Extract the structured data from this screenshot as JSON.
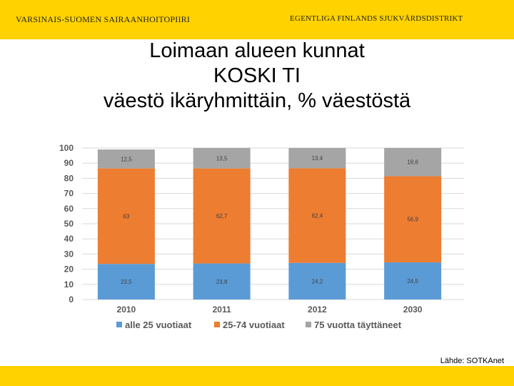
{
  "header": {
    "org_fi": "VARSINAIS-SUOMEN SAIRAANHOITOPIIRI",
    "org_sv": "EGENTLIGA FINLANDS SJUKVÅRDSDISTRIKT",
    "bar_color": "#ffd200"
  },
  "slide": {
    "title_line1": "Loimaan alueen kunnat",
    "title_line2": "KOSKI TI",
    "title_line3": "väestö ikäryhmittäin, % väestöstä"
  },
  "footer": {
    "source": "Lähde: SOTKAnet"
  },
  "chart_data": {
    "type": "bar",
    "stacked": true,
    "categories": [
      "2010",
      "2011",
      "2012",
      "2030"
    ],
    "series": [
      {
        "name": "alle 25 vuotiaat",
        "values": [
          23.5,
          23.8,
          24.2,
          24.5
        ],
        "labels": [
          "23,5",
          "23,8",
          "24,2",
          "24,5"
        ],
        "color": "#5b9bd5"
      },
      {
        "name": "25-74 vuotiaat",
        "values": [
          63.0,
          62.7,
          62.4,
          56.9
        ],
        "labels": [
          "63",
          "62,7",
          "62,4",
          "56,9"
        ],
        "color": "#ed7d31"
      },
      {
        "name": "75 vuotta täyttäneet",
        "values": [
          12.5,
          13.5,
          13.4,
          18.6
        ],
        "labels": [
          "12,5",
          "13,5",
          "13,4",
          "18,6"
        ],
        "color": "#a5a5a5"
      }
    ],
    "y_ticks": [
      "0",
      "10",
      "20",
      "30",
      "40",
      "50",
      "60",
      "70",
      "80",
      "90",
      "100"
    ],
    "ylim": [
      0,
      100
    ],
    "grid": true,
    "legend": "bottom"
  }
}
